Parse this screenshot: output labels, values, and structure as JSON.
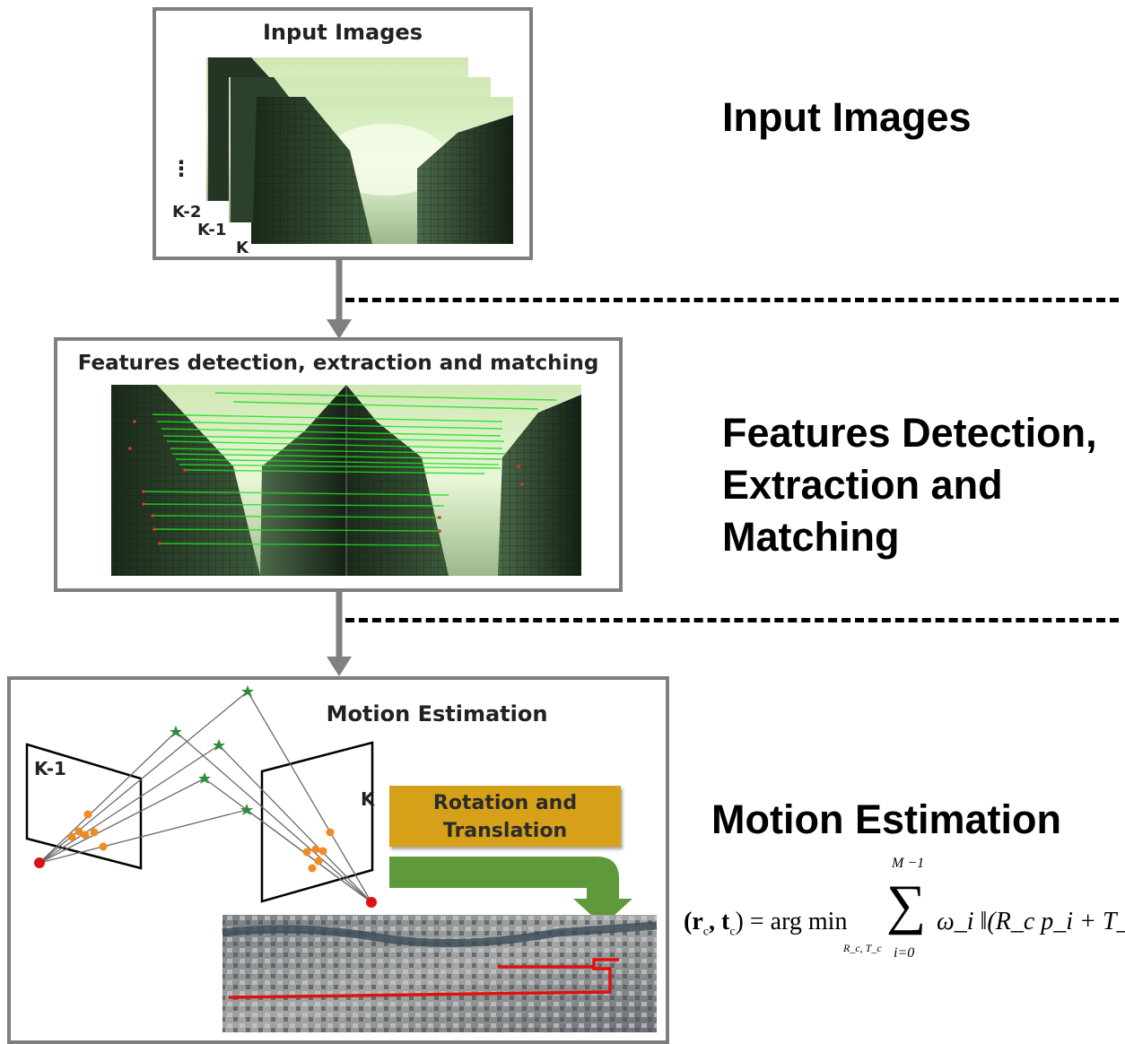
{
  "stages": [
    {
      "box_title": "Input Images",
      "side_label": "Input Images"
    },
    {
      "box_title": "Features detection, extraction and matching",
      "side_label_lines": [
        "Features Detection,",
        "Extraction and",
        "Matching"
      ]
    },
    {
      "box_title": "Motion Estimation",
      "side_label": "Motion Estimation"
    }
  ],
  "input_frames": {
    "dots": "⋮",
    "labels": [
      "K-2",
      "K-1",
      "K"
    ]
  },
  "motion": {
    "camera_labels": [
      "K-1",
      "K"
    ],
    "action_lines": [
      "Rotation and",
      "Translation"
    ]
  },
  "equation": {
    "lhs": "(r",
    "lhs_sub1": "c",
    "comma": ", t",
    "lhs_sub2": "c",
    "close": ") = arg min",
    "min_sub": "R_c, T_c",
    "sum_upper": "M −1",
    "sum_lower": "i=0",
    "body": "ω_i ‖(R_c p_i + T_c) −"
  },
  "colors": {
    "frame_border": "#7f7f7f",
    "arrow": "#808080",
    "match_line": "#22dd22",
    "feature_point": "#f08a24",
    "world_point": "#2e8b3d",
    "camera_center": "#dd1111",
    "action_box": "#d6a118",
    "green_arrow": "#5e9a3c",
    "trajectory": "#e01010"
  }
}
